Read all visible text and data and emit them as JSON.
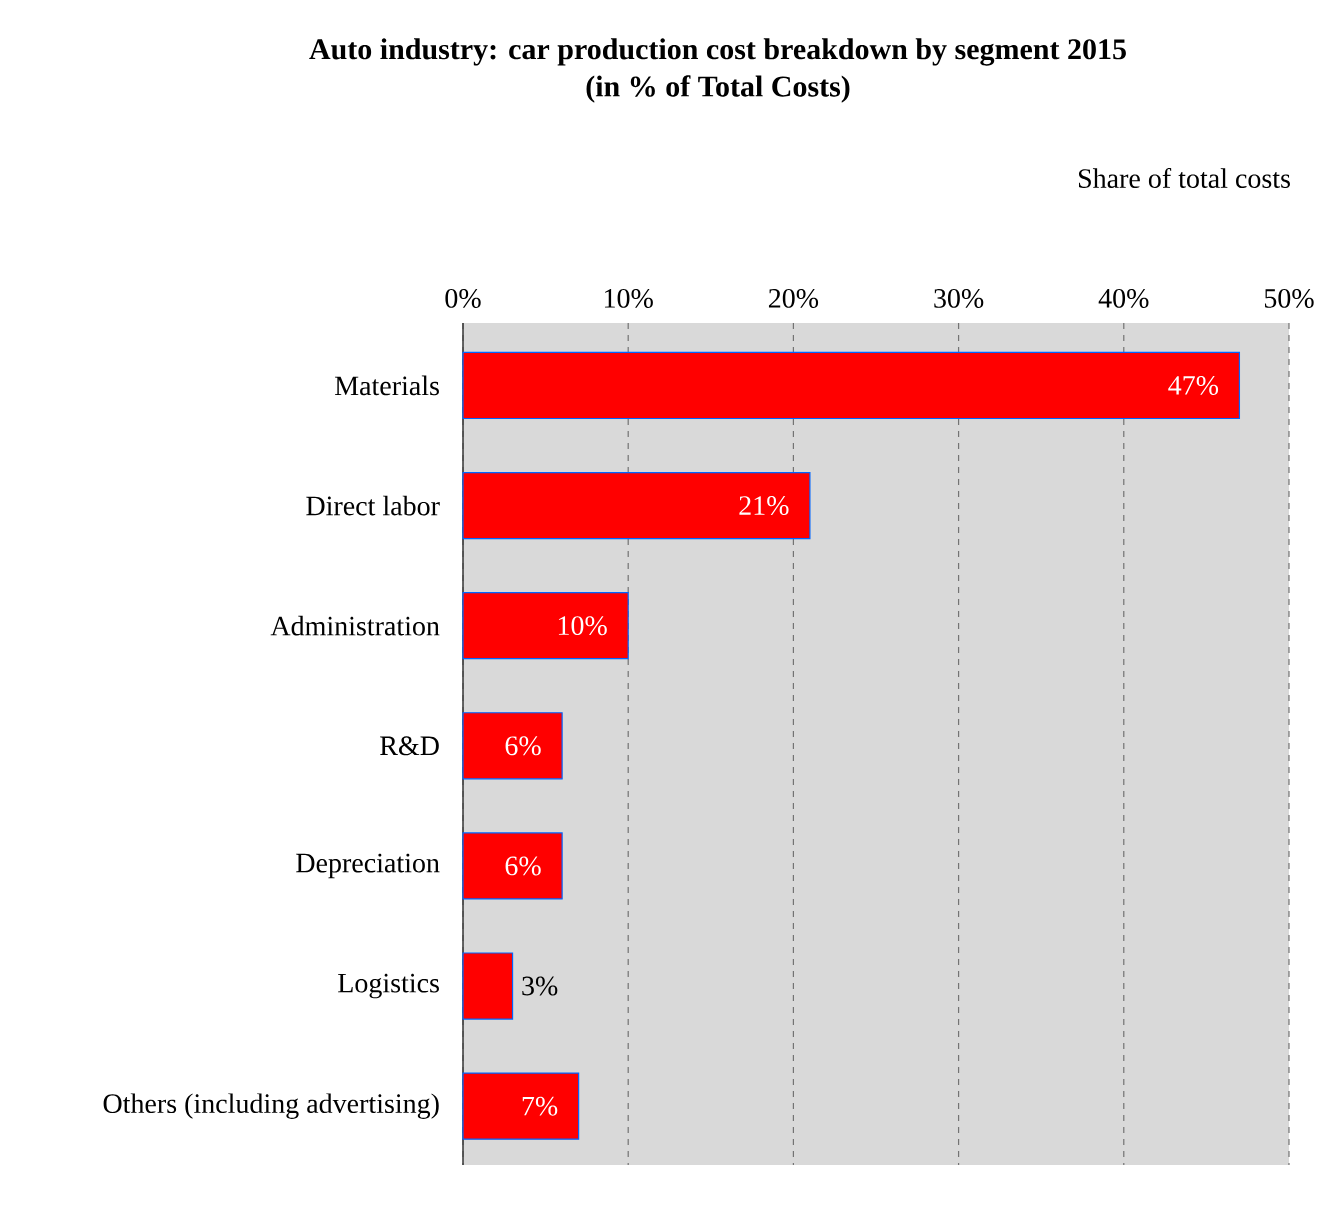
{
  "chart_data": {
    "type": "bar",
    "orientation": "horizontal",
    "title": "Auto industry: car production cost breakdown by segment 2015",
    "subtitle": "(in %  of Total Costs)",
    "xlabel": "Share of total costs",
    "categories": [
      "Materials",
      "Direct labor",
      "Administration",
      "R&D",
      "Depreciation",
      "Logistics",
      "Others (including advertising)"
    ],
    "values": [
      47,
      21,
      10,
      6,
      6,
      3,
      7
    ],
    "value_labels": [
      "47%",
      "21%",
      "10%",
      "6%",
      "6%",
      "3%",
      "7%"
    ],
    "color": "#ff0000",
    "xlim": [
      0,
      50
    ],
    "xticks": [
      {
        "value": 0,
        "label": "0%"
      },
      {
        "value": 10,
        "label": "10%"
      },
      {
        "value": 20,
        "label": "20%"
      },
      {
        "value": 30,
        "label": "30%"
      },
      {
        "value": 40,
        "label": "40%"
      },
      {
        "value": 50,
        "label": "50%"
      }
    ],
    "grid": "x"
  }
}
